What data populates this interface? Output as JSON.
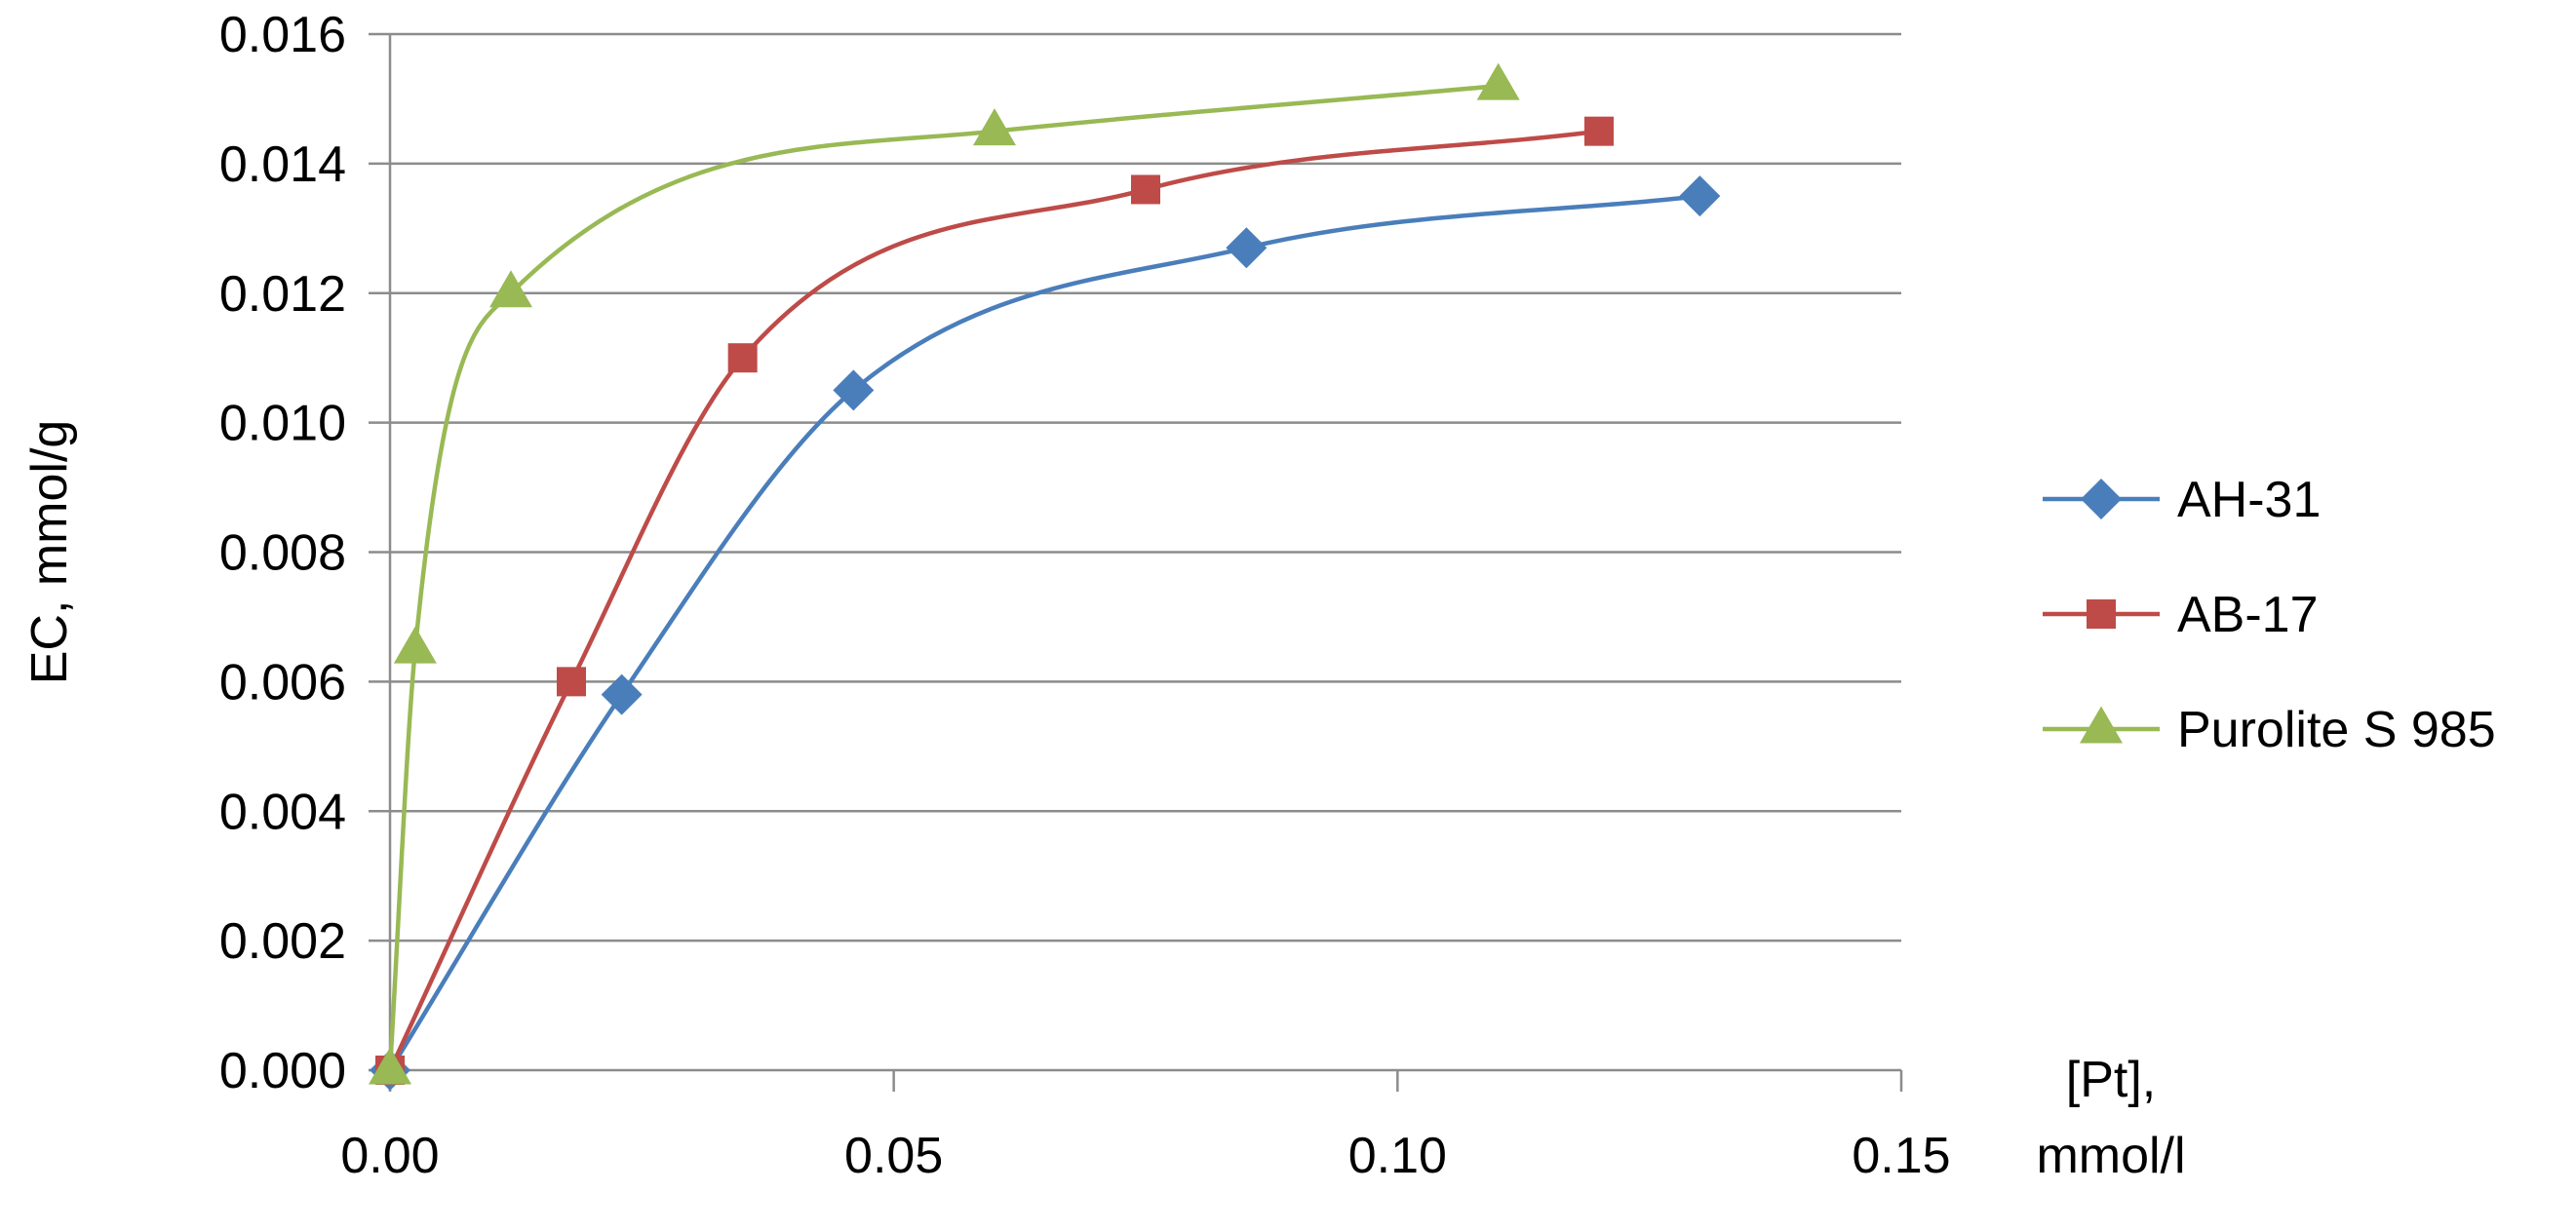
{
  "chart_data": {
    "type": "line",
    "title": "",
    "xlabel": "[Pt],\nmmol/l",
    "ylabel": "EC, mmol/g",
    "xlim": [
      0,
      0.15
    ],
    "ylim": [
      0,
      0.016
    ],
    "x_ticks": [
      "0.00",
      "0.05",
      "0.10",
      "0.15"
    ],
    "y_ticks": [
      "0.000",
      "0.002",
      "0.004",
      "0.006",
      "0.008",
      "0.010",
      "0.012",
      "0.014",
      "0.016"
    ],
    "grid": "horizontal",
    "legend_position": "right",
    "smooth": true,
    "series": [
      {
        "name": "AH-31",
        "color": "#4a7ebb",
        "marker": "diamond",
        "x": [
          0,
          0.023,
          0.046,
          0.085,
          0.13
        ],
        "y": [
          0,
          0.0058,
          0.0105,
          0.0127,
          0.0135
        ]
      },
      {
        "name": "AB-17",
        "color": "#be4b48",
        "marker": "square",
        "x": [
          0,
          0.018,
          0.035,
          0.075,
          0.12
        ],
        "y": [
          0,
          0.006,
          0.011,
          0.0136,
          0.0145
        ]
      },
      {
        "name": "Purolite S 985",
        "color": "#98b954",
        "marker": "triangle",
        "x": [
          0,
          0.0025,
          0.012,
          0.06,
          0.11
        ],
        "y": [
          0,
          0.0065,
          0.012,
          0.0145,
          0.0152
        ]
      }
    ]
  }
}
